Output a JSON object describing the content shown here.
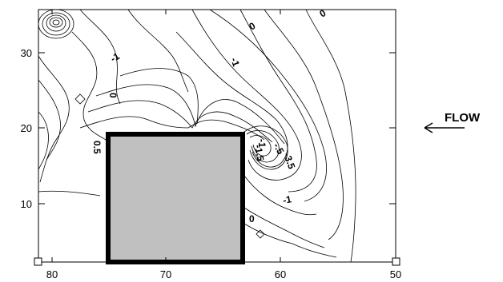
{
  "x_axis": {
    "ticks": [
      "80",
      "70",
      "60",
      "50"
    ]
  },
  "y_axis": {
    "ticks": [
      "10",
      "20",
      "30"
    ]
  },
  "contour_labels": [
    "0",
    "0",
    "-1",
    "0",
    "-1",
    "-1",
    "0",
    "0.5",
    "-.5",
    "-1.5",
    "-3.5",
    "-1"
  ],
  "flow": {
    "label": "FLOW"
  },
  "colors": {
    "obstacle_fill": "#c0c0c0",
    "obstacle_border": "#000000",
    "line": "#000000"
  }
}
